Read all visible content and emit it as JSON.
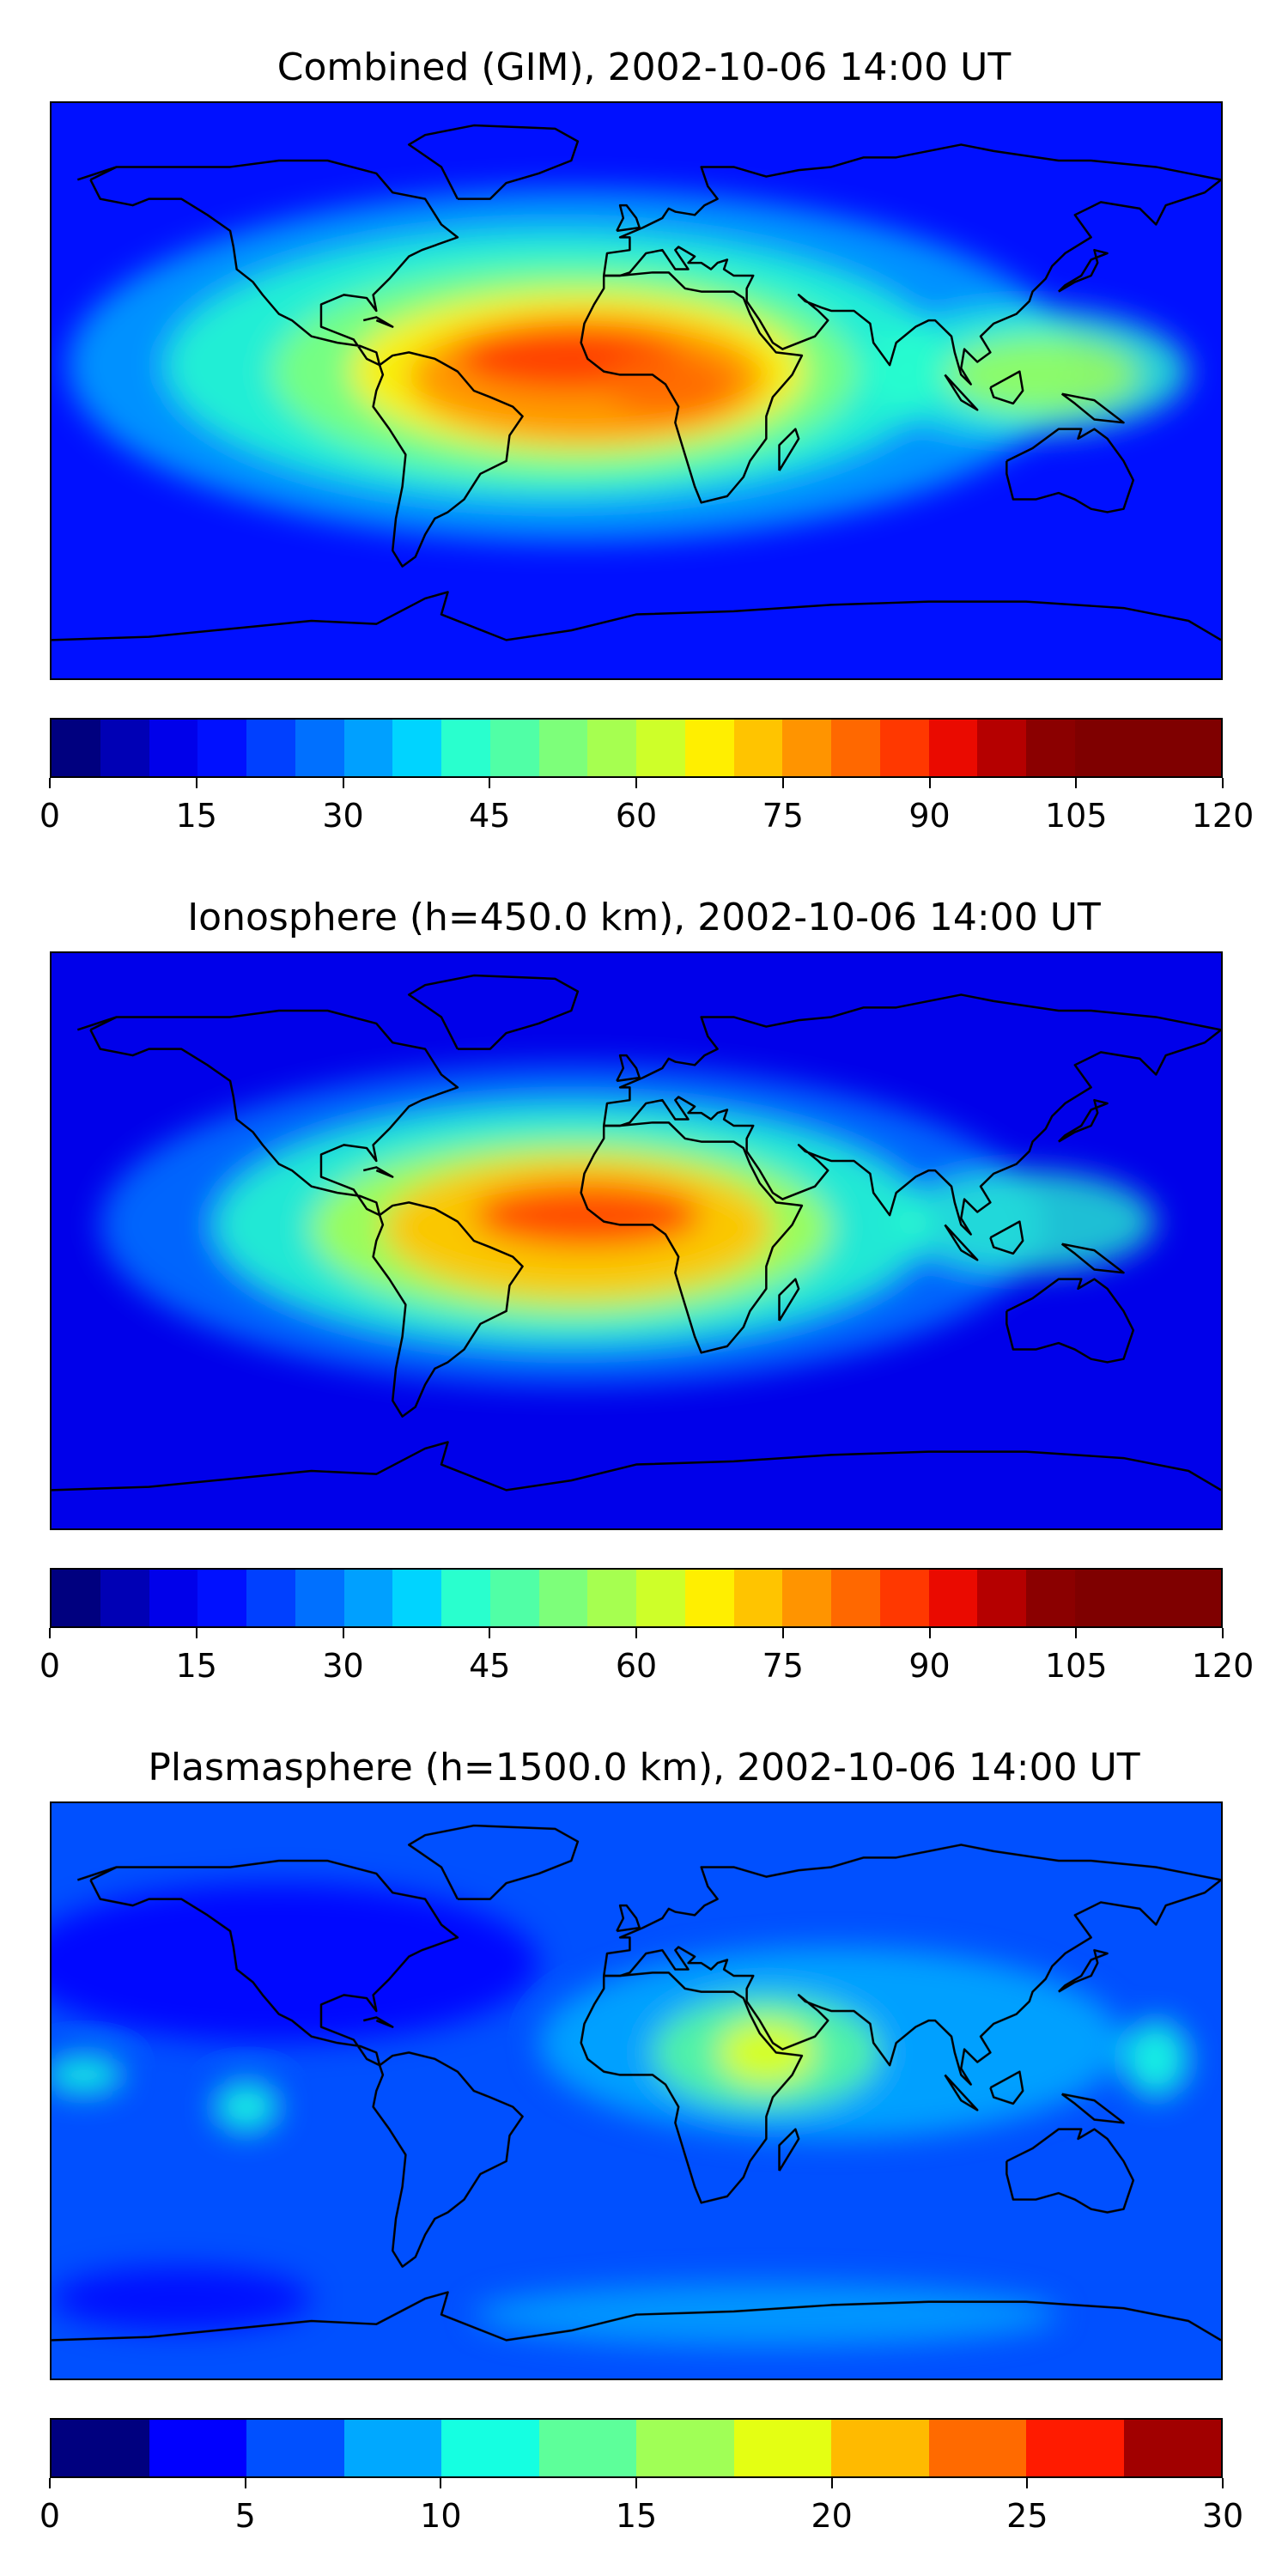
{
  "colors": {
    "jet24": [
      "#00007f",
      "#0000b5",
      "#0000ea",
      "#0010ff",
      "#0040ff",
      "#0070ff",
      "#00a0ff",
      "#00d4ff",
      "#29ffce",
      "#50ffa6",
      "#7dff7a",
      "#a6ff50",
      "#ceff29",
      "#ffef00",
      "#ffc400",
      "#ff9400",
      "#ff6800",
      "#ff3800",
      "#ea0a00",
      "#b50000",
      "#8b0000",
      "#7f0000",
      "#7f0000",
      "#7f0000"
    ],
    "jet12": [
      "#00007f",
      "#0000ff",
      "#0050ff",
      "#00a8ff",
      "#15ffe1",
      "#5dff9a",
      "#a0ff56",
      "#e4ff13",
      "#ffba00",
      "#ff6a00",
      "#ff1b00",
      "#a10000"
    ],
    "coast": "#000000"
  },
  "panels": [
    {
      "title": "Combined (GIM), 2002-10-06 14:00 UT",
      "colorbar": {
        "min": 0,
        "max": 120,
        "levels": 24,
        "ticks": [
          "0",
          "15",
          "30",
          "45",
          "60",
          "75",
          "90",
          "105",
          "120"
        ]
      },
      "field": {
        "background": "#0010ff",
        "blobs": [
          {
            "lon": -20,
            "lat": 8,
            "rx": 155,
            "ry": 55,
            "color": "#00a0ff",
            "opacity": 0.9
          },
          {
            "lon": -25,
            "lat": 8,
            "rx": 120,
            "ry": 42,
            "color": "#29ffce",
            "opacity": 0.85
          },
          {
            "lon": -22,
            "lat": 6,
            "rx": 90,
            "ry": 33,
            "color": "#7dff7a",
            "opacity": 0.9
          },
          {
            "lon": -18,
            "lat": 6,
            "rx": 70,
            "ry": 25,
            "color": "#ffef00",
            "opacity": 0.95
          },
          {
            "lon": -15,
            "lat": 4,
            "rx": 55,
            "ry": 20,
            "color": "#ff9400",
            "opacity": 0.95
          },
          {
            "lon": -20,
            "lat": 10,
            "rx": 35,
            "ry": 10,
            "color": "#ff3800",
            "opacity": 0.9
          },
          {
            "lon": 10,
            "lat": 2,
            "rx": 20,
            "ry": 10,
            "color": "#ff6800",
            "opacity": 0.9
          },
          {
            "lon": 120,
            "lat": 6,
            "rx": 50,
            "ry": 20,
            "color": "#29ffce",
            "opacity": 0.8
          },
          {
            "lon": 125,
            "lat": 5,
            "rx": 30,
            "ry": 12,
            "color": "#a6ff50",
            "opacity": 0.8
          }
        ]
      }
    },
    {
      "title": "Ionosphere  (h=450.0 km), 2002-10-06 14:00 UT",
      "colorbar": {
        "min": 0,
        "max": 120,
        "levels": 24,
        "ticks": [
          "0",
          "15",
          "30",
          "45",
          "60",
          "75",
          "90",
          "105",
          "120"
        ]
      },
      "field": {
        "background": "#0000ea",
        "blobs": [
          {
            "lon": -20,
            "lat": 5,
            "rx": 145,
            "ry": 50,
            "color": "#0070ff",
            "opacity": 0.9
          },
          {
            "lon": -20,
            "lat": 5,
            "rx": 110,
            "ry": 38,
            "color": "#29ffce",
            "opacity": 0.85
          },
          {
            "lon": -20,
            "lat": 4,
            "rx": 80,
            "ry": 28,
            "color": "#a6ff50",
            "opacity": 0.9
          },
          {
            "lon": -18,
            "lat": 4,
            "rx": 60,
            "ry": 22,
            "color": "#ffc400",
            "opacity": 0.95
          },
          {
            "lon": -15,
            "lat": 8,
            "rx": 35,
            "ry": 10,
            "color": "#ff3800",
            "opacity": 0.85
          },
          {
            "lon": 120,
            "lat": 6,
            "rx": 40,
            "ry": 16,
            "color": "#29ffce",
            "opacity": 0.75
          }
        ]
      }
    },
    {
      "title": "Plasmasphere (h=1500.0 km), 2002-10-06 14:00 UT",
      "colorbar": {
        "min": 0,
        "max": 30,
        "levels": 12,
        "ticks": [
          "0",
          "5",
          "10",
          "15",
          "20",
          "25",
          "30"
        ]
      },
      "field": {
        "background": "#0050ff",
        "blobs": [
          {
            "lon": -110,
            "lat": 40,
            "rx": 80,
            "ry": 25,
            "color": "#0000ff",
            "opacity": 0.9
          },
          {
            "lon": -140,
            "lat": -65,
            "rx": 40,
            "ry": 10,
            "color": "#0000ff",
            "opacity": 0.8
          },
          {
            "lon": 60,
            "lat": 15,
            "rx": 90,
            "ry": 30,
            "color": "#00a8ff",
            "opacity": 0.9
          },
          {
            "lon": 40,
            "lat": 12,
            "rx": 35,
            "ry": 18,
            "color": "#5dff9a",
            "opacity": 0.85
          },
          {
            "lon": 40,
            "lat": 12,
            "rx": 15,
            "ry": 10,
            "color": "#e4ff13",
            "opacity": 0.9
          },
          {
            "lon": 160,
            "lat": 10,
            "rx": 10,
            "ry": 12,
            "color": "#15ffe1",
            "opacity": 0.9
          },
          {
            "lon": -170,
            "lat": 5,
            "rx": 12,
            "ry": 6,
            "color": "#15ffe1",
            "opacity": 0.9
          },
          {
            "lon": -120,
            "lat": -5,
            "rx": 10,
            "ry": 8,
            "color": "#15ffe1",
            "opacity": 0.9
          },
          {
            "lon": 40,
            "lat": -70,
            "rx": 90,
            "ry": 10,
            "color": "#00a8ff",
            "opacity": 0.8
          }
        ]
      }
    }
  ]
}
